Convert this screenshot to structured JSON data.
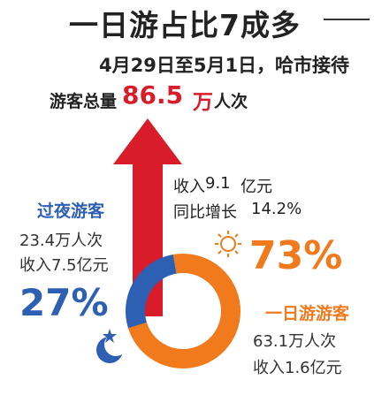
{
  "headline": "一日游占比7成多",
  "summary": {
    "line1": "4月29日至5月1日，哈市接待",
    "line2_prefix": "游客总量",
    "line2_value": "86.5",
    "line2_unit": "万",
    "line2_suffix": "人次"
  },
  "growth_note": {
    "income_label": "收入",
    "income_value": "9.1",
    "income_unit": "亿元",
    "growth_label": "同比增长",
    "growth_value": "14.2%"
  },
  "overnight": {
    "title": "过夜游客",
    "visitors": "23.4万人次",
    "income": "收入7.5亿元",
    "percent": "27%"
  },
  "daytrip": {
    "title": "一日游游客",
    "visitors": "63.1万人次",
    "income": "收入1.6亿元",
    "percent": "73%"
  },
  "colors": {
    "daytrip": "#f07a1c",
    "overnight": "#2d5fb3",
    "arrow": "#d91c29"
  },
  "icons": [
    "sun-icon",
    "moon-star-icon",
    "up-arrow-icon"
  ],
  "chart_data": {
    "type": "pie",
    "title": "一日游占比7成多",
    "categories": [
      "一日游游客",
      "过夜游客"
    ],
    "values": [
      73,
      27
    ],
    "unit": "%",
    "donut": true,
    "total_visitors_wan": 86.5,
    "visitors_wan": [
      63.1,
      23.4
    ],
    "income_yi_yuan": [
      1.6,
      7.5
    ],
    "total_income_yi_yuan": 9.1,
    "income_growth_percent": 14.2
  }
}
